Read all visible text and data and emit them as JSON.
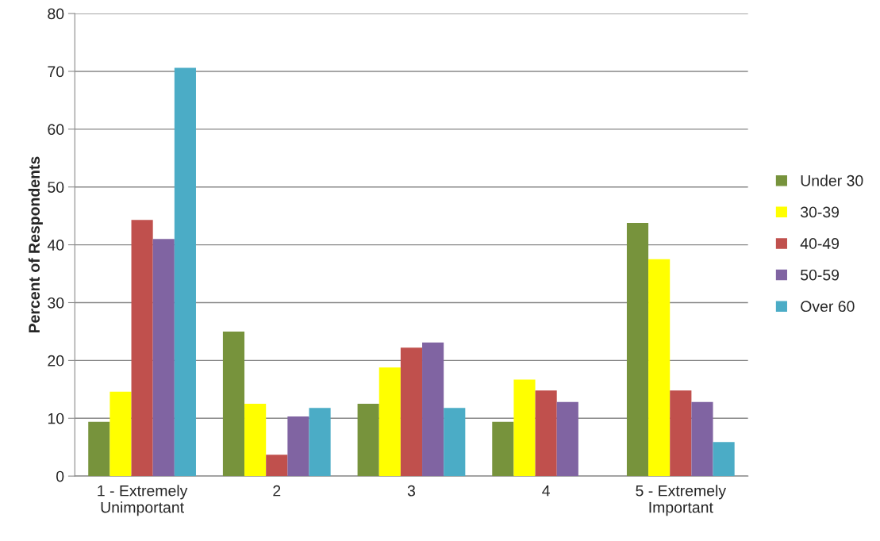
{
  "chart_data": {
    "type": "bar",
    "ylabel": "Percent of Respondents",
    "categories": [
      "1 - Extremely\nUnimportant",
      "2",
      "3",
      "4",
      "5 - Extremely\nImportant"
    ],
    "series": [
      {
        "name": "Under 30",
        "color": "#77933c",
        "values": [
          9.4,
          25.0,
          12.5,
          9.4,
          43.8
        ]
      },
      {
        "name": "30-39",
        "color": "#ffff00",
        "values": [
          14.6,
          12.5,
          18.8,
          16.7,
          37.5
        ]
      },
      {
        "name": "40-49",
        "color": "#c0504d",
        "values": [
          44.3,
          3.7,
          22.2,
          14.8,
          14.8
        ]
      },
      {
        "name": "50-59",
        "color": "#8064a2",
        "values": [
          41.0,
          10.3,
          23.1,
          12.8,
          12.8
        ]
      },
      {
        "name": "Over 60",
        "color": "#4bacc6",
        "values": [
          70.6,
          11.8,
          11.8,
          null,
          5.9
        ]
      }
    ],
    "ylim": [
      0,
      80
    ],
    "yticks": [
      0,
      10,
      20,
      30,
      40,
      50,
      60,
      70,
      80
    ],
    "grid": "y",
    "legend": "right"
  }
}
